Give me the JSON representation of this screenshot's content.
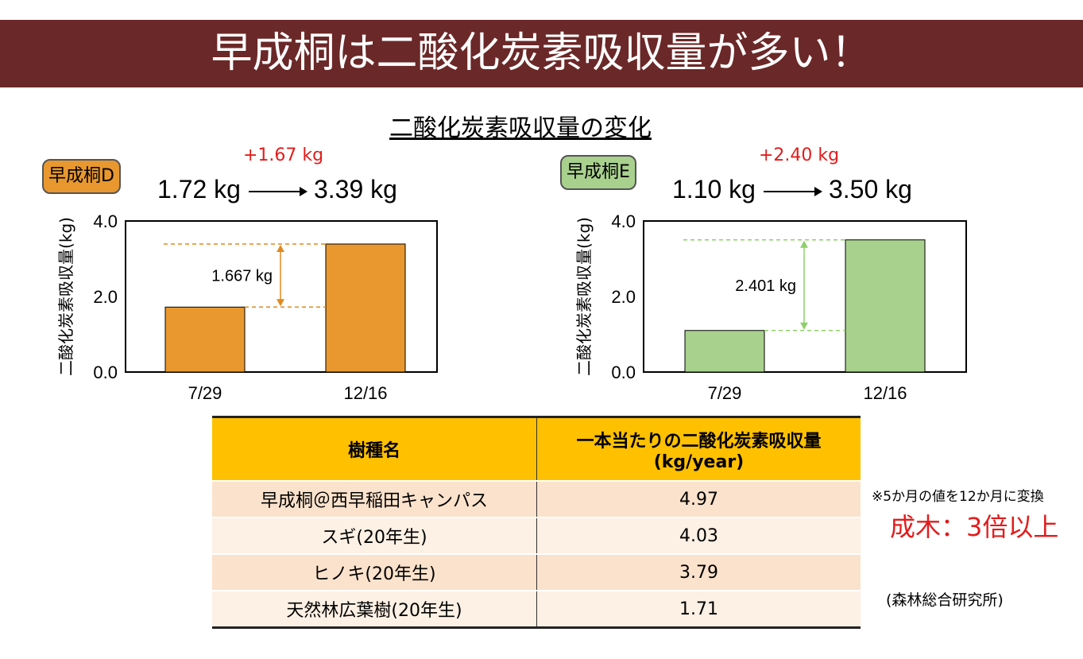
{
  "title": "早成桐は二酸化炭素吸収量が多い！",
  "subtitle": "二酸化炭素吸収量の変化",
  "colors": {
    "banner": "#6b2828",
    "orange": "#e8982f",
    "green": "#a9d18e",
    "red": "#e31c1c",
    "table_header": "#ffc000"
  },
  "chart_data": [
    {
      "type": "bar",
      "badge": "早成桐D",
      "delta": "+1.67 kg",
      "from": "1.72 kg",
      "to": "3.39 kg",
      "ylabel": "二酸化炭素吸収量(kg)",
      "categories": [
        "7/29",
        "12/16"
      ],
      "values": [
        1.72,
        3.39
      ],
      "ylim": [
        0,
        4
      ],
      "yticks": [
        "0.0",
        "2.0",
        "4.0"
      ],
      "annotation": "1.667 kg",
      "color": "#e8982f",
      "grid": false
    },
    {
      "type": "bar",
      "badge": "早成桐E",
      "delta": "+2.40 kg",
      "from": "1.10 kg",
      "to": "3.50 kg",
      "ylabel": "二酸化炭素吸収量(kg)",
      "categories": [
        "7/29",
        "12/16"
      ],
      "values": [
        1.1,
        3.5
      ],
      "ylim": [
        0,
        4
      ],
      "yticks": [
        "0.0",
        "2.0",
        "4.0"
      ],
      "annotation": "2.401 kg",
      "color": "#a9d18e",
      "grid": false
    }
  ],
  "table": {
    "headers": [
      "樹種名",
      "一本当たりの二酸化炭素吸収量\n(kg/year)"
    ],
    "rows": [
      [
        "早成桐＠西早稲田キャンパス",
        "4.97"
      ],
      [
        "スギ(20年生)",
        "4.03"
      ],
      [
        "ヒノキ(20年生)",
        "3.79"
      ],
      [
        "天然林広葉樹(20年生)",
        "1.71"
      ]
    ]
  },
  "notes": {
    "conversion": "※5か月の値を12か月に変換",
    "highlight": "成木：3倍以上",
    "source": "(森林総合研究所)"
  }
}
